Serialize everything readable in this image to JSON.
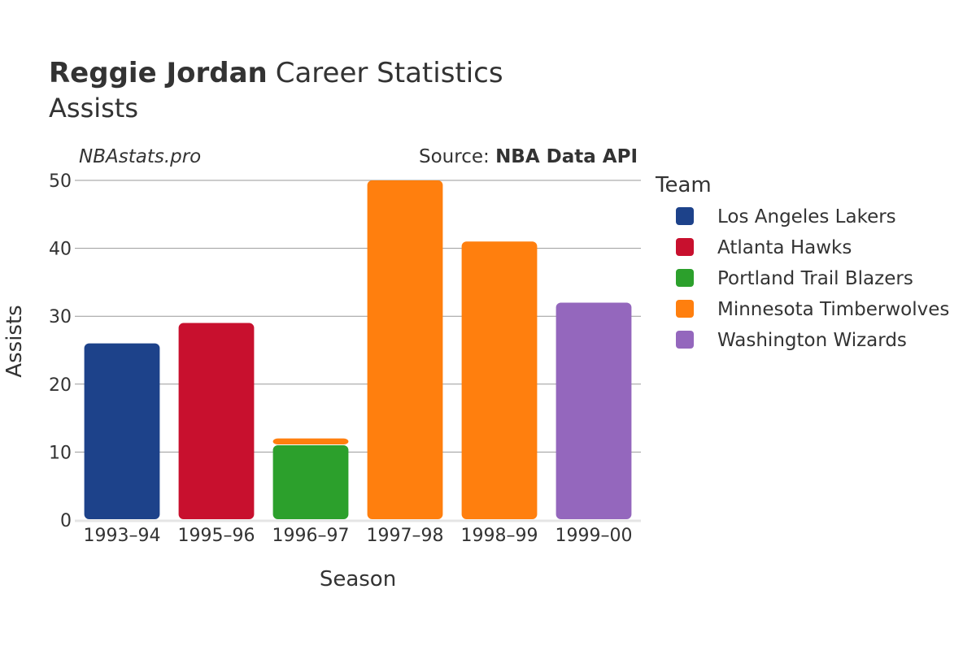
{
  "header": {
    "title_bold": "Reggie Jordan",
    "title_rest": "Career Statistics",
    "subtitle": "Assists"
  },
  "watermark": "NBAstats.pro",
  "source": {
    "prefix": "Source: ",
    "name": "NBA Data API"
  },
  "legend": {
    "title": "Team"
  },
  "colors": {
    "Los Angeles Lakers": "#1d428a",
    "Atlanta Hawks": "#c8102e",
    "Portland Trail Blazers": "#2ca02c",
    "Minnesota Timberwolves": "#ff7f0e",
    "Washington Wizards": "#9467bd",
    "grid": "#999999",
    "axis": "#e5e5e5",
    "text": "#333333"
  },
  "chart_data": {
    "type": "bar",
    "stacked": true,
    "title": "Reggie Jordan Career Statistics",
    "subtitle": "Assists",
    "xlabel": "Season",
    "ylabel": "Assists",
    "ylim": [
      0,
      50
    ],
    "yticks": [
      0,
      10,
      20,
      30,
      40,
      50
    ],
    "categories": [
      "1993–94",
      "1995–96",
      "1996–97",
      "1997–98",
      "1998–99",
      "1999–00"
    ],
    "series": [
      {
        "name": "Los Angeles Lakers",
        "values": [
          26,
          0,
          0,
          0,
          0,
          0
        ]
      },
      {
        "name": "Atlanta Hawks",
        "values": [
          0,
          29,
          0,
          0,
          0,
          0
        ]
      },
      {
        "name": "Portland Trail Blazers",
        "values": [
          0,
          0,
          11,
          0,
          0,
          0
        ]
      },
      {
        "name": "Minnesota Timberwolves",
        "values": [
          0,
          0,
          1,
          50,
          41,
          0
        ]
      },
      {
        "name": "Washington Wizards",
        "values": [
          0,
          0,
          0,
          0,
          0,
          32
        ]
      }
    ],
    "legend_position": "right"
  }
}
